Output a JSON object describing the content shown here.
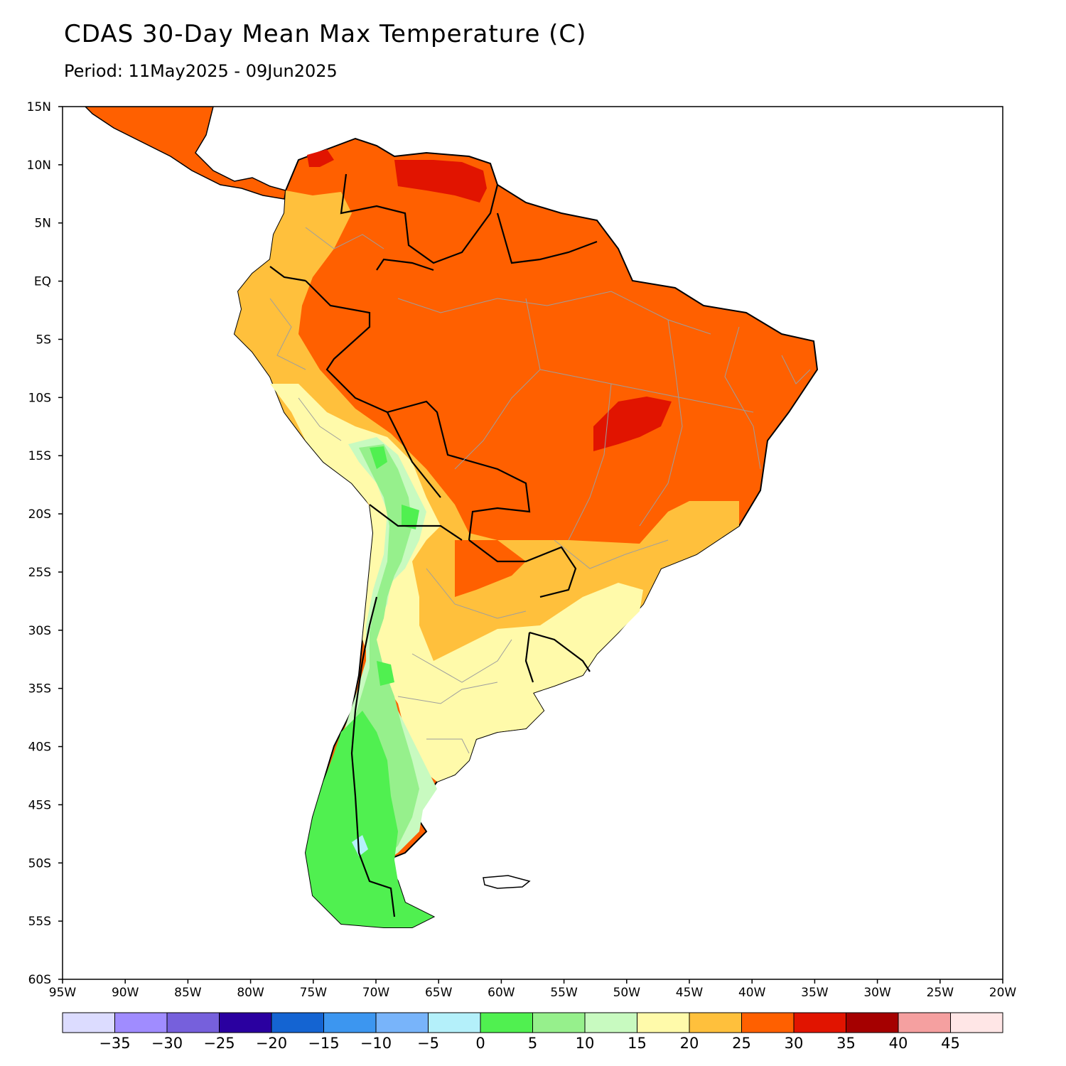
{
  "title": "CDAS 30-Day Mean Max Temperature (C)",
  "subtitle": "Period: 11May2025 - 09Jun2025",
  "map": {
    "lat_labels": [
      "15N",
      "10N",
      "5N",
      "EQ",
      "5S",
      "10S",
      "15S",
      "20S",
      "25S",
      "30S",
      "35S",
      "40S",
      "45S",
      "50S",
      "55S",
      "60S"
    ],
    "lon_labels": [
      "95W",
      "90W",
      "85W",
      "80W",
      "75W",
      "70W",
      "65W",
      "60W",
      "55W",
      "50W",
      "45W",
      "40W",
      "35W",
      "30W",
      "25W",
      "20W"
    ],
    "lat_range": [
      -60,
      15
    ],
    "lon_range": [
      -95,
      -20
    ]
  },
  "colorbar": {
    "colors": [
      "#dcdcff",
      "#a08cff",
      "#7660dc",
      "#2a00a0",
      "#1464d2",
      "#3c96f0",
      "#78b4fa",
      "#b4f0fa",
      "#50f050",
      "#96f08c",
      "#c8fac0",
      "#fffaaa",
      "#ffc03c",
      "#ff6000",
      "#e11400",
      "#a50000",
      "#f5a0a0",
      "#ffe6e6"
    ],
    "labels": [
      "-35",
      "-30",
      "-25",
      "-20",
      "-15",
      "-10",
      "-5",
      "0",
      "5",
      "10",
      "15",
      "20",
      "25",
      "30",
      "35",
      "40",
      "45"
    ]
  }
}
